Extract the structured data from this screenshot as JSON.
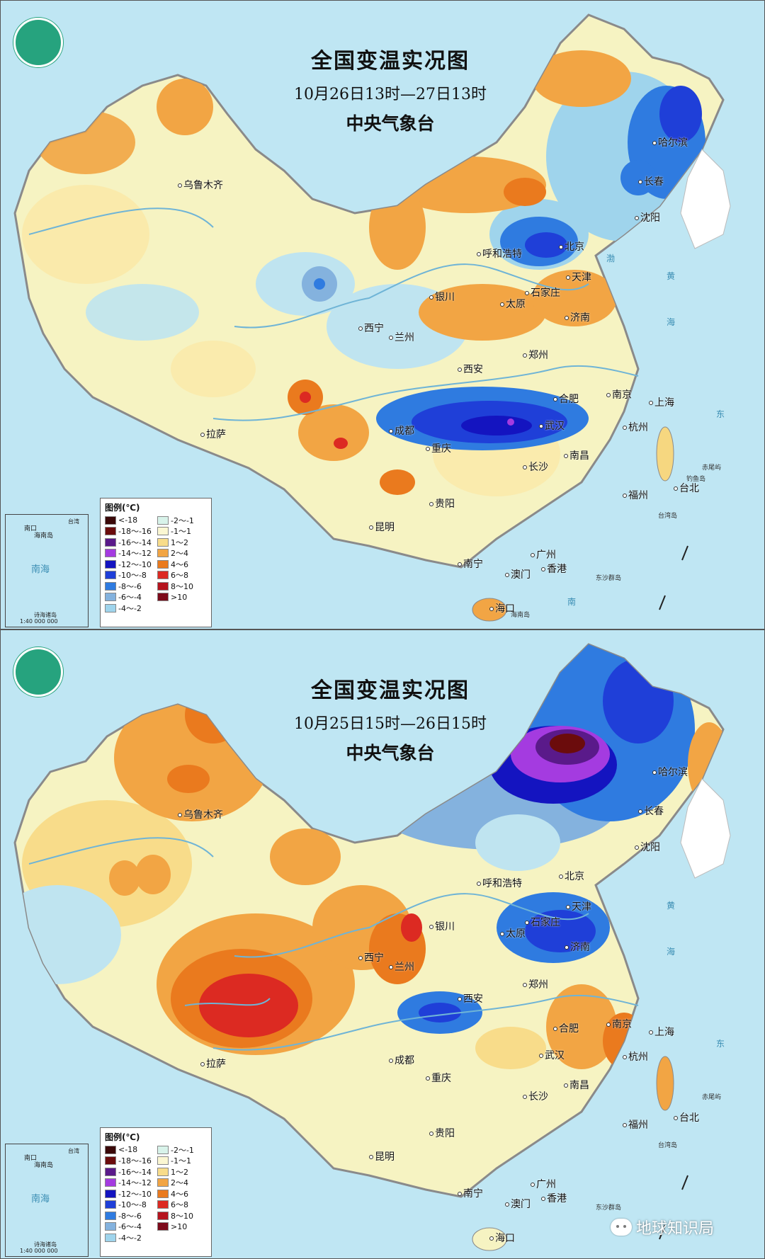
{
  "colors": {
    "sea": "#bfe6f3",
    "land_base": "#f6f3c2",
    "outline": "#8a8a8a"
  },
  "legend": {
    "title": "图例(℃)",
    "items": [
      {
        "label": "<-18",
        "color": "#3a0808"
      },
      {
        "label": "-2～-1",
        "color": "#d8f3ea"
      },
      {
        "label": "-18～-16",
        "color": "#6b0c0c"
      },
      {
        "label": "-1～1",
        "color": "#fbf7d2"
      },
      {
        "label": "-16～-14",
        "color": "#5a1a8a"
      },
      {
        "label": "1～2",
        "color": "#f8dc8a"
      },
      {
        "label": "-14～-12",
        "color": "#a43be0"
      },
      {
        "label": "2～4",
        "color": "#f2a544"
      },
      {
        "label": "-12～-10",
        "color": "#1414c0"
      },
      {
        "label": "4～6",
        "color": "#ea7a1e"
      },
      {
        "label": "-10～-8",
        "color": "#1f3fd8"
      },
      {
        "label": "6～8",
        "color": "#dc2a22"
      },
      {
        "label": "-8～-6",
        "color": "#2f7be0"
      },
      {
        "label": "8～10",
        "color": "#b5141e"
      },
      {
        "label": "-6～-4",
        "color": "#84b2de"
      },
      {
        "label": ">10",
        "color": "#7c0a1a"
      },
      {
        "label": "-4～-2",
        "color": "#9fd4ec"
      }
    ]
  },
  "inset": {
    "sea": "南海",
    "label_nanhai": "南口",
    "label_hainan": "海南岛",
    "label_taiwan": "台湾",
    "label_islands": "诗海诸岛",
    "scale": "1:40 000 000"
  },
  "maps": [
    {
      "title": "全国变温实况图",
      "period": "10月26日13时—27日13时",
      "agency": "中央气象台"
    },
    {
      "title": "全国变温实况图",
      "period": "10月25日15时—26日15时",
      "agency": "中央气象台"
    }
  ],
  "cities": {
    "urumqi": "乌鲁木齐",
    "harbin": "哈尔滨",
    "changchun": "长春",
    "shenyang": "沈阳",
    "hohhot": "呼和浩特",
    "beijing": "北京",
    "tianjin": "天津",
    "yinchuan": "银川",
    "taiyuan": "太原",
    "shijiazhuang": "石家庄",
    "xining": "西宁",
    "lanzhou": "兰州",
    "jinan": "济南",
    "zhengzhou": "郑州",
    "xian": "西安",
    "hefei": "合肥",
    "nanjing": "南京",
    "shanghai": "上海",
    "lhasa": "拉萨",
    "chengdu": "成都",
    "wuhan": "武汉",
    "hangzhou": "杭州",
    "chongqing": "重庆",
    "changsha": "长沙",
    "nanchang": "南昌",
    "taipei": "台北",
    "guiyang": "贵阳",
    "fuzhou": "福州",
    "kunming": "昆明",
    "guangzhou": "广州",
    "nanning": "南宁",
    "macau": "澳门",
    "hongkong": "香港",
    "haikou": "海口"
  },
  "places": {
    "taiwan_island": "台湾岛",
    "hainan_island": "海南岛",
    "dongsha": "东沙群岛",
    "chiwei": "赤尾屿",
    "diaoyu": "钓鱼岛"
  },
  "seas": {
    "bohai": "渤",
    "huang": "黄",
    "hai": "海",
    "dong": "东",
    "nan": "南"
  },
  "watermark": "地球知识局"
}
